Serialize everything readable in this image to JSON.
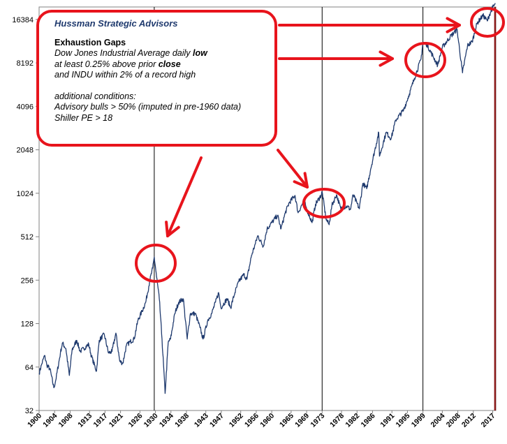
{
  "annotation": {
    "brand": "Hussman Strategic Advisors",
    "heading": "Exhaustion Gaps",
    "line1": {
      "a": "Dow Jones Industrial Average daily ",
      "b": "low"
    },
    "line2": {
      "a": "at least 0.25% above prior ",
      "b": "close"
    },
    "line3": "and INDU within 2% of a record high",
    "cond_title": "additional conditions:",
    "cond1": "Advisory bulls > 50% (imputed in pre-1960 data)",
    "cond2": "Shiller PE > 18"
  },
  "colors": {
    "line": "#1f3a6e",
    "annotation": "#e8141c",
    "marker": "#000000",
    "end_marker": "#8b1a1a"
  },
  "chart_data": {
    "type": "line",
    "title": "",
    "xlabel": "",
    "ylabel": "",
    "y_scale": "log2",
    "ylim": [
      32,
      20000
    ],
    "xlim": [
      1900,
      2017.8
    ],
    "grid": false,
    "y_ticks": [
      32,
      64,
      128,
      256,
      512,
      1024,
      2048,
      4096,
      8192,
      16384
    ],
    "y_tick_labels": [
      "32",
      "64",
      "128",
      "256",
      "512",
      "1024",
      "2048",
      "4096",
      "8192",
      "16384"
    ],
    "x_ticks": [
      1900,
      1904,
      1908,
      1913,
      1917,
      1921,
      1926,
      1930,
      1934,
      1938,
      1943,
      1947,
      1952,
      1956,
      1960,
      1965,
      1969,
      1973,
      1978,
      1982,
      1986,
      1991,
      1995,
      1999,
      2004,
      2008,
      2012,
      2017
    ],
    "x_tick_labels": [
      "1900",
      "1904",
      "1908",
      "1913",
      "1917",
      "1921",
      "1926",
      "1930",
      "1934",
      "1938",
      "1943",
      "1947",
      "1952",
      "1956",
      "1960",
      "1965",
      "1969",
      "1973",
      "1978",
      "1982",
      "1986",
      "1991",
      "1995",
      "1999",
      "2004",
      "2008",
      "2012",
      "2017"
    ],
    "markers": [
      1929.7,
      1973.0,
      1999.0,
      2017.6
    ],
    "series": [
      {
        "x": [
          1900,
          1900.6,
          1901.4,
          1902.0,
          1902.8,
          1903.8,
          1904.3,
          1905.5,
          1906.0,
          1906.9,
          1907.8,
          1908.5,
          1909.7,
          1910.6,
          1911.5,
          1912.8,
          1913.5,
          1914.8,
          1915.5,
          1916.8,
          1917.9,
          1918.8,
          1919.8,
          1920.8,
          1921.6,
          1922.5,
          1923.5,
          1924.5,
          1925.5,
          1926.5,
          1927.5,
          1928.5,
          1929.3,
          1929.7,
          1930.3,
          1931.0,
          1931.7,
          1932.5,
          1933.3,
          1933.9,
          1935.0,
          1936.0,
          1937.2,
          1938.2,
          1939.0,
          1940.3,
          1941.5,
          1942.3,
          1943.5,
          1944.5,
          1945.5,
          1946.3,
          1946.9,
          1948.5,
          1949.4,
          1950.5,
          1951.5,
          1952.8,
          1953.6,
          1954.8,
          1955.8,
          1956.4,
          1957.8,
          1958.8,
          1960.0,
          1961.5,
          1962.4,
          1963.5,
          1964.5,
          1966.0,
          1966.8,
          1968.3,
          1969.0,
          1970.4,
          1971.3,
          1972.8,
          1973.0,
          1974.0,
          1974.8,
          1975.5,
          1976.7,
          1977.8,
          1978.5,
          1979.5,
          1980.3,
          1981.0,
          1982.6,
          1983.5,
          1984.5,
          1985.5,
          1987.6,
          1987.8,
          1989.5,
          1990.8,
          1992.0,
          1994.0,
          1995.5,
          1996.8,
          1998.5,
          1999.0,
          2000.0,
          2001.7,
          2002.8,
          2004.0,
          2006.0,
          2007.8,
          2009.2,
          2010.5,
          2011.7,
          2013.0,
          2014.5,
          2015.6,
          2016.2,
          2017.0,
          2017.7
        ],
        "y": [
          58,
          66,
          77,
          66,
          62,
          46,
          52,
          80,
          94,
          86,
          56,
          84,
          98,
          82,
          86,
          92,
          76,
          60,
          98,
          108,
          80,
          82,
          110,
          70,
          68,
          90,
          96,
          100,
          135,
          155,
          180,
          250,
          310,
          370,
          270,
          190,
          100,
          42,
          95,
          100,
          150,
          180,
          190,
          100,
          150,
          150,
          120,
          100,
          135,
          150,
          180,
          210,
          165,
          190,
          165,
          210,
          250,
          280,
          260,
          380,
          460,
          520,
          440,
          580,
          640,
          720,
          580,
          750,
          880,
          990,
          750,
          910,
          800,
          640,
          860,
          1000,
          1050,
          680,
          620,
          840,
          1000,
          800,
          820,
          830,
          790,
          1000,
          800,
          1200,
          1100,
          1500,
          2700,
          1850,
          2700,
          2450,
          3300,
          3850,
          5000,
          6400,
          8700,
          11400,
          11000,
          9000,
          7900,
          10500,
          12400,
          14000,
          7000,
          10800,
          11500,
          15500,
          17500,
          16000,
          17800,
          19900,
          21000
        ]
      }
    ]
  }
}
